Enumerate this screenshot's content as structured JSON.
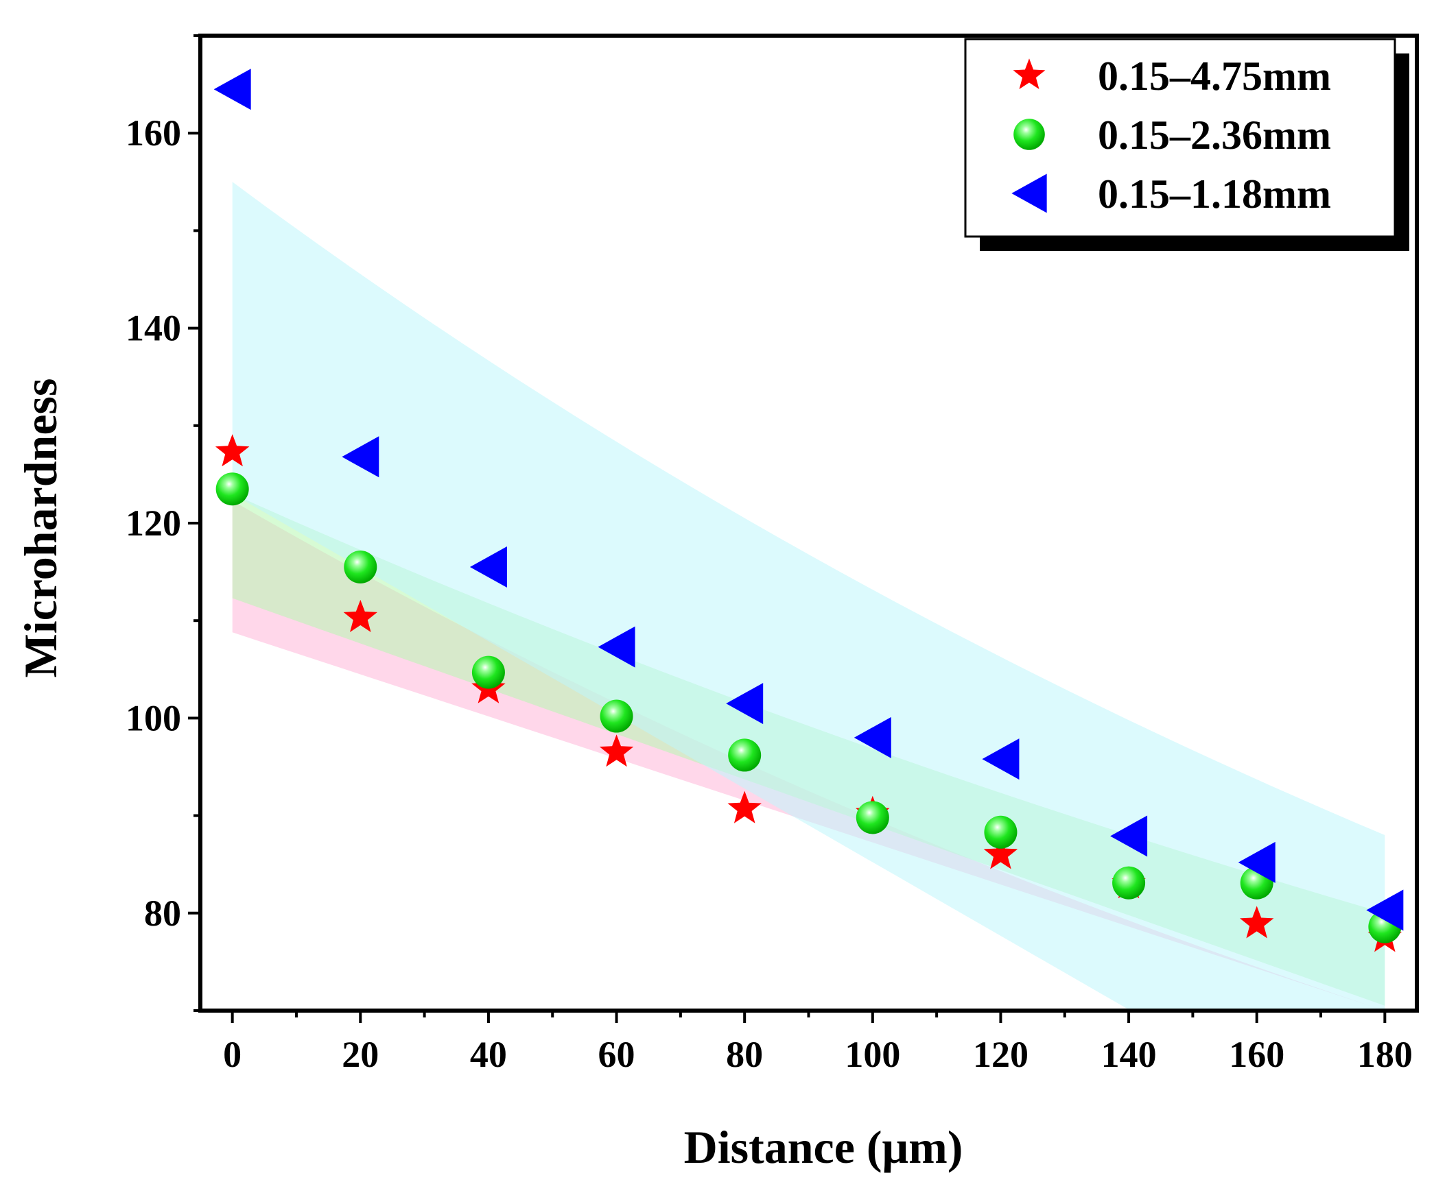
{
  "chart_data": {
    "type": "scatter",
    "title": "",
    "xlabel": "Distance (μm)",
    "ylabel": "Microhardness",
    "xlim": [
      -5,
      185
    ],
    "ylim": [
      70,
      170
    ],
    "x_ticks": [
      0,
      20,
      40,
      60,
      80,
      100,
      120,
      140,
      160,
      180
    ],
    "y_ticks": [
      80,
      100,
      120,
      140,
      160
    ],
    "grid": false,
    "legend_position": "top-right",
    "series": [
      {
        "name": "0.15–4.75mm",
        "marker": "star",
        "color": "#ff0000",
        "x": [
          0,
          20,
          40,
          60,
          80,
          100,
          120,
          140,
          160,
          180
        ],
        "y": [
          127.3,
          110.3,
          103.0,
          96.5,
          90.7,
          90.2,
          86.0,
          83.0,
          78.9,
          77.5
        ],
        "band": {
          "color": "#ffb6d9",
          "x": [
            0,
            180
          ],
          "upper": [
            122.3,
            70.0
          ],
          "lower": [
            108.8,
            70.0
          ]
        }
      },
      {
        "name": "0.15–2.36mm",
        "marker": "sphere",
        "color": "#00ee00",
        "x": [
          0,
          20,
          40,
          60,
          80,
          100,
          120,
          140,
          160,
          180
        ],
        "y": [
          123.5,
          115.5,
          104.7,
          100.2,
          96.2,
          89.8,
          88.3,
          83.1,
          83.1,
          78.6
        ],
        "band": {
          "color": "#b7f7b0",
          "x": [
            0,
            180
          ],
          "upper": [
            123.0,
            80.0
          ],
          "lower": [
            112.3,
            70.5
          ]
        }
      },
      {
        "name": "0.15–1.18mm",
        "marker": "left-triangle",
        "color": "#0000ff",
        "x": [
          0,
          20,
          40,
          60,
          80,
          100,
          120,
          140,
          160,
          180
        ],
        "y": [
          164.5,
          126.8,
          115.5,
          107.3,
          101.5,
          98.0,
          95.8,
          87.9,
          85.2,
          80.3
        ],
        "band": {
          "color": "#bff5fb",
          "x": [
            0,
            180
          ],
          "upper": [
            155.0,
            88.0
          ],
          "lower": [
            123.0,
            55.0
          ]
        }
      }
    ]
  }
}
